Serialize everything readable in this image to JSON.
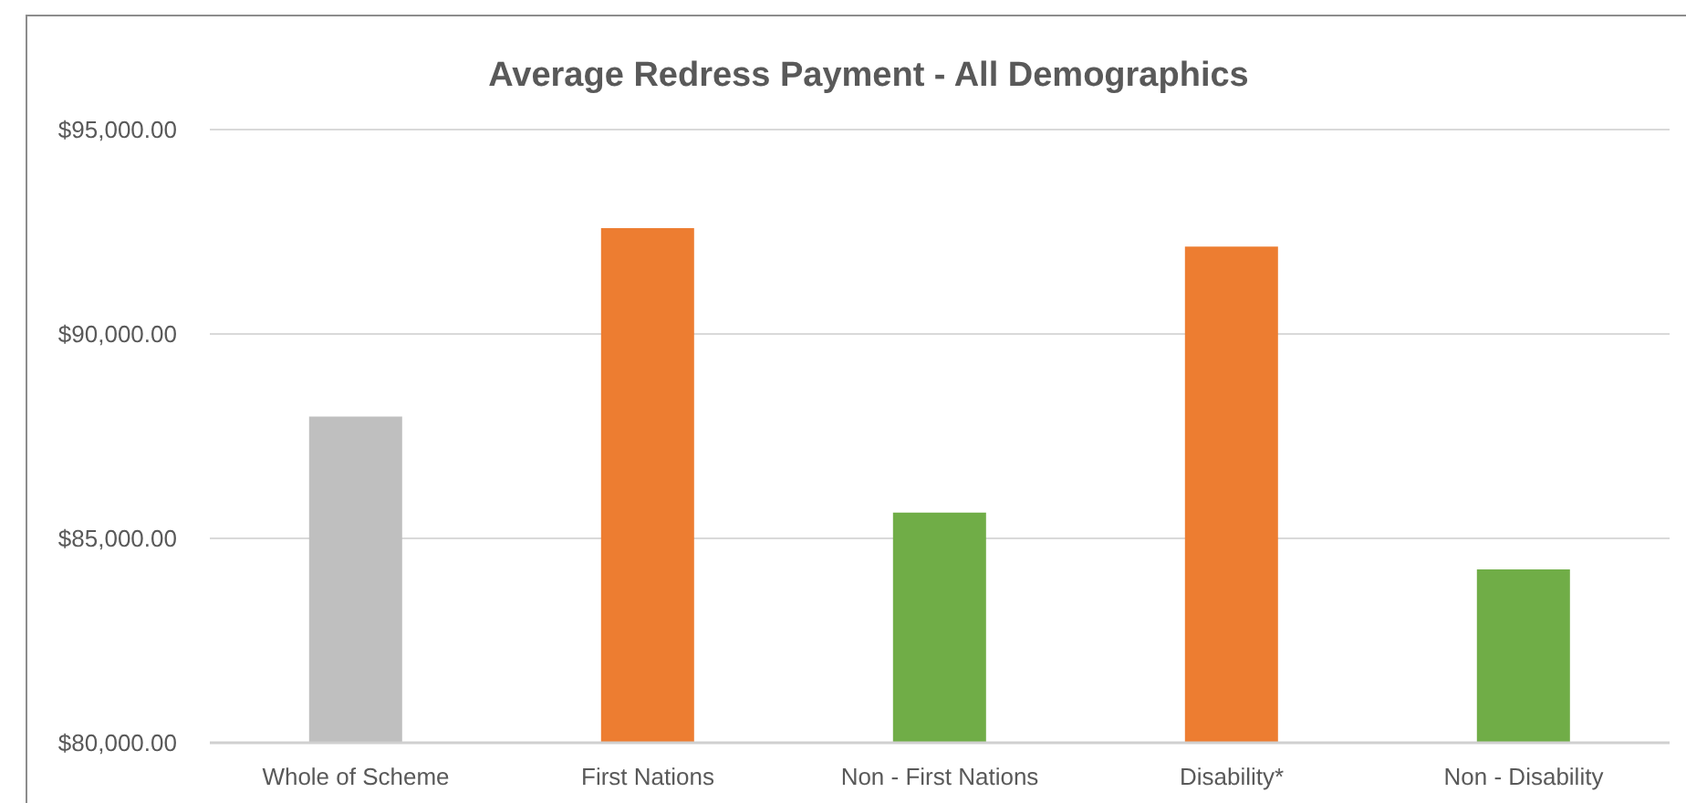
{
  "chart_data": {
    "type": "bar",
    "title": "Average Redress Payment - All Demographics",
    "categories": [
      "Whole of Scheme",
      "First Nations",
      "Non - First Nations",
      "Disability*",
      "Non - Disability"
    ],
    "values": [
      87980,
      92590,
      85630,
      92140,
      84240
    ],
    "colors": [
      "#bfbfbf",
      "#ed7d31",
      "#70ad47",
      "#ed7d31",
      "#70ad47"
    ],
    "ylim": [
      80000,
      95000
    ],
    "yticks": [
      {
        "value": 80000,
        "label": "$80,000.00"
      },
      {
        "value": 85000,
        "label": "$85,000.00"
      },
      {
        "value": 90000,
        "label": "$90,000.00"
      },
      {
        "value": 95000,
        "label": "$95,000.00"
      }
    ],
    "grid": "y",
    "legend": false
  }
}
